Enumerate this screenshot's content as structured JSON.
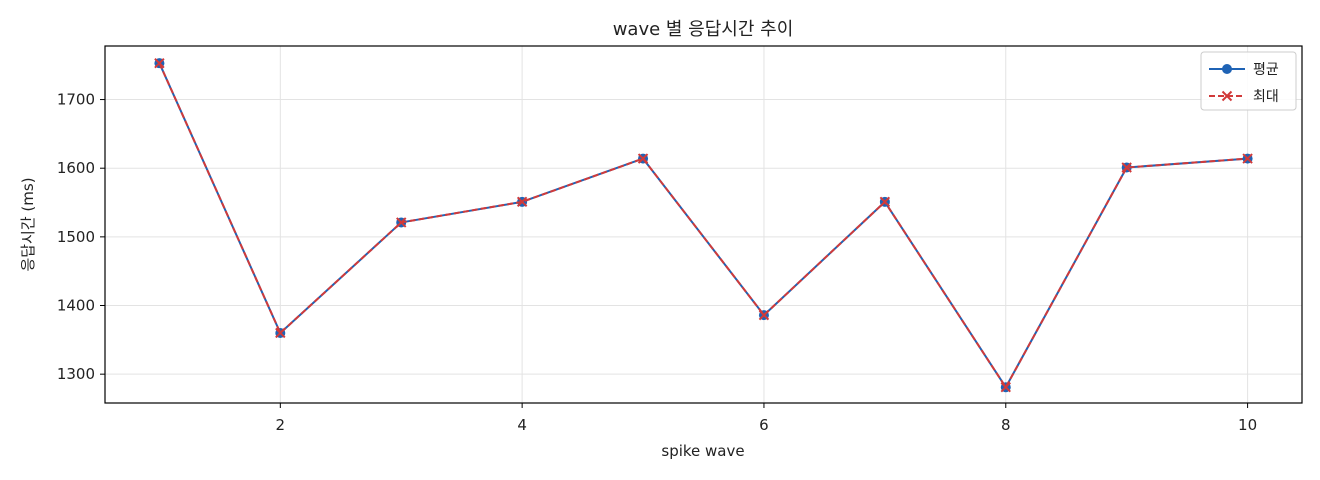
{
  "chart_data": {
    "type": "line",
    "title": "wave 별 응답시간 추이",
    "xlabel": "spike wave",
    "ylabel": "응답시간 (ms)",
    "x": [
      1,
      2,
      3,
      4,
      5,
      6,
      7,
      8,
      9,
      10
    ],
    "xlim": [
      0.55,
      10.45
    ],
    "ylim": [
      1258,
      1778
    ],
    "xticks": [
      2,
      4,
      6,
      8,
      10
    ],
    "yticks": [
      1300,
      1400,
      1500,
      1600,
      1700
    ],
    "grid": true,
    "legend_position": "top-right",
    "series": [
      {
        "name": "평균",
        "color": "#1f63b5",
        "line_style": "solid",
        "marker": "circle",
        "values": [
          1753,
          1360,
          1521,
          1551,
          1614,
          1386,
          1551,
          1281,
          1601,
          1614
        ]
      },
      {
        "name": "최대",
        "color": "#d13a3a",
        "line_style": "dashed",
        "marker": "x",
        "values": [
          1753,
          1360,
          1521,
          1551,
          1614,
          1386,
          1551,
          1281,
          1601,
          1614
        ]
      }
    ]
  }
}
